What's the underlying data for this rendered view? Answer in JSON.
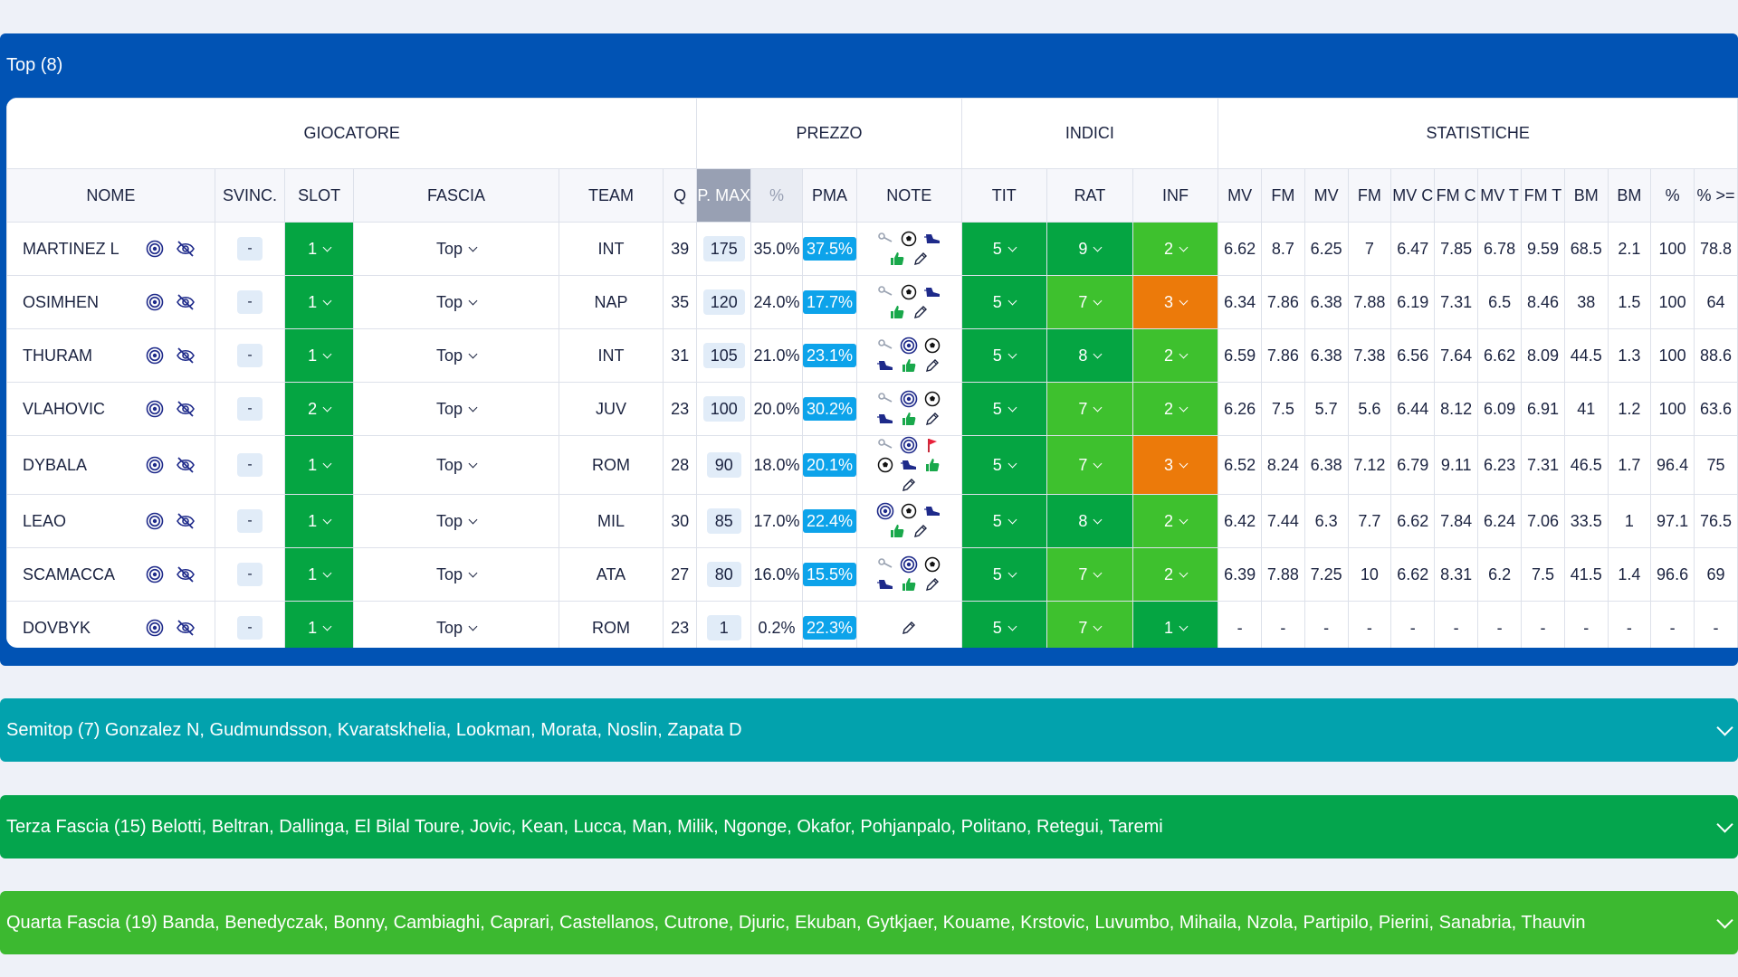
{
  "top": {
    "title": "Top (8)",
    "groups": {
      "giocatore": "GIOCATORE",
      "prezzo": "PREZZO",
      "indici": "INDICI",
      "statistiche": "STATISTICHE"
    },
    "columns": [
      "NOME",
      "SVINC.",
      "SLOT",
      "FASCIA",
      "TEAM",
      "Q",
      "P. MAX",
      "%",
      "PMA",
      "NOTE",
      "TIT",
      "RAT",
      "INF",
      "MV",
      "FM",
      "MV",
      "FM",
      "MV C",
      "FM C",
      "MV T",
      "FM T",
      "BM",
      "BM",
      "%",
      "% >="
    ],
    "rows": [
      {
        "name": "MARTINEZ L",
        "svinc": "-",
        "slot": "1",
        "fascia": "Top",
        "team": "INT",
        "q": "39",
        "pmax": "175",
        "pct": "35.0%",
        "pma": "37.5%",
        "notes": [
          "key",
          "ball",
          "boot",
          "thumb",
          "pencil"
        ],
        "tit": "5",
        "rat": "9",
        "inf": "2",
        "stats": [
          "6.62",
          "8.7",
          "6.25",
          "7",
          "6.47",
          "7.85",
          "6.78",
          "9.59",
          "68.5",
          "2.1",
          "100",
          "78.8"
        ]
      },
      {
        "name": "OSIMHEN",
        "svinc": "-",
        "slot": "1",
        "fascia": "Top",
        "team": "NAP",
        "q": "35",
        "pmax": "120",
        "pct": "24.0%",
        "pma": "17.7%",
        "notes": [
          "key",
          "ball",
          "boot",
          "thumb",
          "pencil"
        ],
        "tit": "5",
        "rat": "7",
        "inf": "3",
        "stats": [
          "6.34",
          "7.86",
          "6.38",
          "7.88",
          "6.19",
          "7.31",
          "6.5",
          "8.46",
          "38",
          "1.5",
          "100",
          "64"
        ]
      },
      {
        "name": "THURAM",
        "svinc": "-",
        "slot": "1",
        "fascia": "Top",
        "team": "INT",
        "q": "31",
        "pmax": "105",
        "pct": "21.0%",
        "pma": "23.1%",
        "notes": [
          "key",
          "target",
          "ball",
          "boot",
          "thumb",
          "pencil"
        ],
        "tit": "5",
        "rat": "8",
        "inf": "2",
        "stats": [
          "6.59",
          "7.86",
          "6.38",
          "7.38",
          "6.56",
          "7.64",
          "6.62",
          "8.09",
          "44.5",
          "1.3",
          "100",
          "88.6"
        ]
      },
      {
        "name": "VLAHOVIC",
        "svinc": "-",
        "slot": "2",
        "fascia": "Top",
        "team": "JUV",
        "q": "23",
        "pmax": "100",
        "pct": "20.0%",
        "pma": "30.2%",
        "notes": [
          "key",
          "target",
          "ball",
          "boot",
          "thumb",
          "pencil"
        ],
        "tit": "5",
        "rat": "7",
        "inf": "2",
        "stats": [
          "6.26",
          "7.5",
          "5.7",
          "5.6",
          "6.44",
          "8.12",
          "6.09",
          "6.91",
          "41",
          "1.2",
          "100",
          "63.6"
        ]
      },
      {
        "name": "DYBALA",
        "svinc": "-",
        "slot": "1",
        "fascia": "Top",
        "team": "ROM",
        "q": "28",
        "pmax": "90",
        "pct": "18.0%",
        "pma": "20.1%",
        "notes": [
          "key",
          "target",
          "flag",
          "ball",
          "boot",
          "thumb",
          "pencil"
        ],
        "tit": "5",
        "rat": "7",
        "inf": "3",
        "stats": [
          "6.52",
          "8.24",
          "6.38",
          "7.12",
          "6.79",
          "9.11",
          "6.23",
          "7.31",
          "46.5",
          "1.7",
          "96.4",
          "75"
        ]
      },
      {
        "name": "LEAO",
        "svinc": "-",
        "slot": "1",
        "fascia": "Top",
        "team": "MIL",
        "q": "30",
        "pmax": "85",
        "pct": "17.0%",
        "pma": "22.4%",
        "notes": [
          "target",
          "ball",
          "boot",
          "thumb",
          "pencil"
        ],
        "tit": "5",
        "rat": "8",
        "inf": "2",
        "stats": [
          "6.42",
          "7.44",
          "6.3",
          "7.7",
          "6.62",
          "7.84",
          "6.24",
          "7.06",
          "33.5",
          "1",
          "97.1",
          "76.5"
        ]
      },
      {
        "name": "SCAMACCA",
        "svinc": "-",
        "slot": "1",
        "fascia": "Top",
        "team": "ATA",
        "q": "27",
        "pmax": "80",
        "pct": "16.0%",
        "pma": "15.5%",
        "notes": [
          "key",
          "target",
          "ball",
          "boot",
          "thumb",
          "pencil"
        ],
        "tit": "5",
        "rat": "7",
        "inf": "2",
        "stats": [
          "6.39",
          "7.88",
          "7.25",
          "10",
          "6.62",
          "8.31",
          "6.2",
          "7.5",
          "41.5",
          "1.4",
          "96.6",
          "69"
        ]
      },
      {
        "name": "DOVBYK",
        "svinc": "-",
        "slot": "1",
        "fascia": "Top",
        "team": "ROM",
        "q": "23",
        "pmax": "1",
        "pct": "0.2%",
        "pma": "22.3%",
        "notes": [
          "pencil"
        ],
        "tit": "5",
        "rat": "7",
        "inf": "1",
        "stats": [
          "-",
          "-",
          "-",
          "-",
          "-",
          "-",
          "-",
          "-",
          "-",
          "-",
          "-",
          "-"
        ]
      }
    ]
  },
  "bars": {
    "semitop": "Semitop (7) Gonzalez N, Gudmundsson, Kvaratskhelia, Lookman, Morata, Noslin, Zapata D",
    "terza": "Terza Fascia (15) Belotti, Beltran, Dallinga, El Bilal Toure, Jovic, Kean, Lucca, Man, Milik, Ngonge, Okafor, Pohjanpalo, Politano, Retegui, Taremi",
    "quarta": "Quarta Fascia (19) Banda, Benedyczak, Bonny, Cambiaghi, Caprari, Castellanos, Cutrone, Djuric, Ekuban, Gytkjaer, Kouame, Krstovic, Luvumbo, Mihaila, Nzola, Partipilo, Pierini, Sanabria, Thauvin"
  },
  "colors": {
    "top_header": "#0153b4",
    "semitop": "#02a2ad",
    "terza": "#04a54d",
    "quarta": "#3cb930",
    "slot_green": "#05a542",
    "rat_high": "#05a542",
    "rat_mid": "#3ec12e",
    "inf_orange": "#ec7a0a",
    "pma_blue": "#0da3ea"
  }
}
